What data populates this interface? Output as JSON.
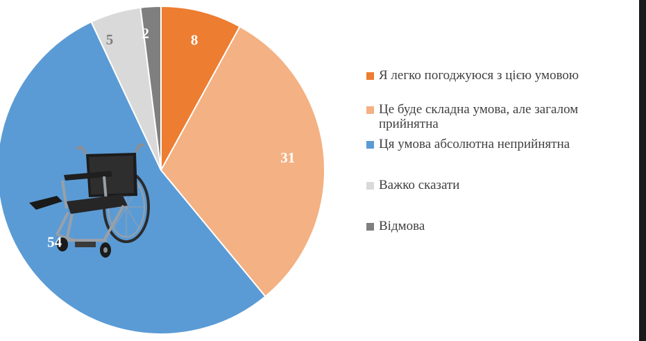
{
  "chart_data": {
    "type": "pie",
    "title": "",
    "start_angle_deg": 0,
    "slices": [
      {
        "label": "Я легко погоджуюся з цією умовою",
        "value": 8,
        "color": "#ed7d31",
        "value_label_color": "#ffffff"
      },
      {
        "label": "Це буде складна умова, але загалом\nприйнятна",
        "value": 31,
        "color": "#f4b183",
        "value_label_color": "#ffffff"
      },
      {
        "label": "Ця умова абсолютна неприйнятна",
        "value": 54,
        "color": "#5b9bd5",
        "value_label_color": "#ffffff"
      },
      {
        "label": "Важко сказати",
        "value": 5,
        "color": "#d9d9d9",
        "value_label_color": "#7f7f7f"
      },
      {
        "label": "Відмова",
        "value": 2,
        "color": "#7f7f7f",
        "value_label_color": "#ffffff"
      }
    ],
    "legend_position": "right"
  },
  "image": {
    "icon": "wheelchair-icon"
  }
}
